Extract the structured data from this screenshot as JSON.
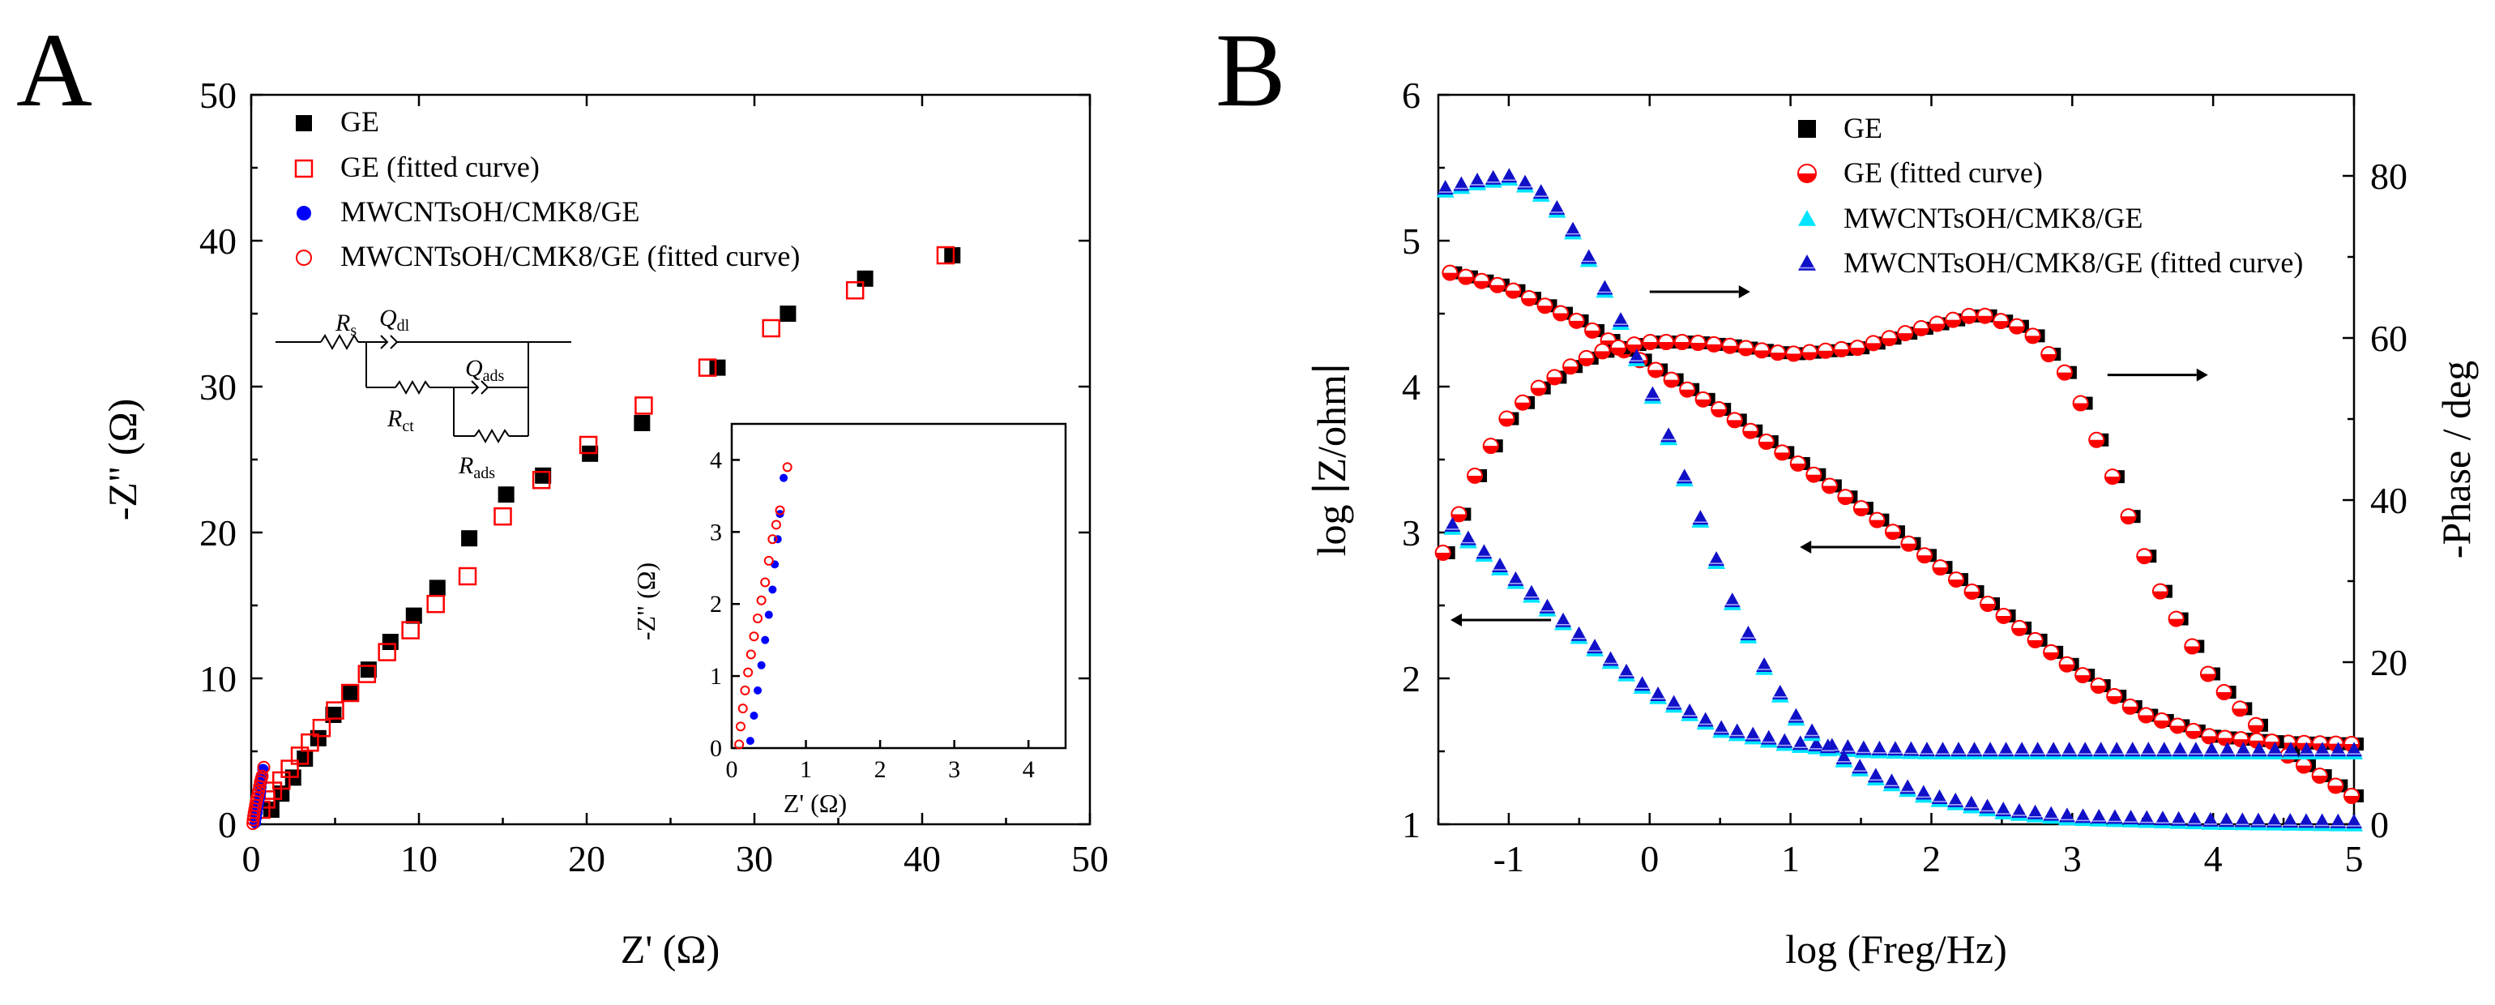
{
  "figure": {
    "panel_a_letter": "A",
    "panel_b_letter": "B"
  },
  "colors": {
    "black": "#000000",
    "red": "#ff0000",
    "blue": "#0000ff",
    "cyan": "#00e5ff",
    "navy": "#1010c8"
  },
  "chart_data": [
    {
      "id": "A",
      "type": "scatter",
      "title": "",
      "xlabel": "Z' (Ω)",
      "ylabel": "-Z\" (Ω)",
      "xlim": [
        0,
        50
      ],
      "ylim": [
        0,
        50
      ],
      "xticks": [
        "0",
        "10",
        "20",
        "30",
        "40",
        "50"
      ],
      "yticks": [
        "0",
        "10",
        "20",
        "30",
        "40",
        "50"
      ],
      "legend": [
        {
          "label": "GE",
          "marker": "square-filled",
          "color": "#000000"
        },
        {
          "label": "GE (fitted curve)",
          "marker": "square-open",
          "color": "#ff0000"
        },
        {
          "label": "MWCNTsOH/CMK8/GE",
          "marker": "circle-filled",
          "color": "#0000ff"
        },
        {
          "label": "MWCNTsOH/CMK8/GE (fitted curve)",
          "marker": "circle-open",
          "color": "#ff0000"
        }
      ],
      "series": [
        {
          "name": "GE",
          "x": [
            1.2,
            1.8,
            2.5,
            3.2,
            4.0,
            4.9,
            5.9,
            7.0,
            8.3,
            9.7,
            11.1,
            13.0,
            15.2,
            17.4,
            20.2,
            23.3,
            27.8,
            32.0,
            36.6,
            41.8
          ],
          "y": [
            1.0,
            2.1,
            3.2,
            4.5,
            5.9,
            7.5,
            9.0,
            10.6,
            12.5,
            14.3,
            16.2,
            19.6,
            22.6,
            23.9,
            25.4,
            27.5,
            31.3,
            35.0,
            37.4,
            39.0
          ]
        },
        {
          "name": "GE (fitted curve)",
          "x": [
            0.6,
            0.9,
            1.3,
            1.8,
            2.3,
            2.9,
            3.5,
            4.2,
            5.0,
            5.9,
            6.9,
            8.1,
            9.5,
            11.0,
            12.9,
            15.0,
            17.3,
            20.1,
            23.4,
            27.2,
            31.0,
            36.0,
            41.4
          ],
          "y": [
            1.0,
            1.7,
            2.3,
            3.0,
            3.8,
            4.7,
            5.6,
            6.6,
            7.8,
            9.0,
            10.3,
            11.8,
            13.3,
            15.1,
            17.0,
            21.1,
            23.6,
            26.0,
            28.7,
            31.3,
            34.0,
            36.6,
            39.0
          ]
        },
        {
          "name": "MWCNTsOH/CMK8/GE",
          "x": [
            0.25,
            0.3,
            0.35,
            0.4,
            0.45,
            0.5,
            0.55,
            0.58,
            0.62,
            0.65,
            0.7
          ],
          "y": [
            0.1,
            0.45,
            0.8,
            1.15,
            1.5,
            1.85,
            2.2,
            2.55,
            2.9,
            3.25,
            3.75
          ]
        },
        {
          "name": "MWCNTsOH/CMK8/GE (fitted curve)",
          "x": [
            0.1,
            0.12,
            0.15,
            0.18,
            0.22,
            0.26,
            0.3,
            0.35,
            0.4,
            0.45,
            0.5,
            0.55,
            0.6,
            0.65,
            0.75
          ],
          "y": [
            0.05,
            0.3,
            0.55,
            0.8,
            1.05,
            1.3,
            1.55,
            1.8,
            2.05,
            2.3,
            2.6,
            2.9,
            3.1,
            3.3,
            3.9
          ]
        }
      ],
      "inset": {
        "xlabel": "Z' (Ω)",
        "ylabel": "-Z\" (Ω)",
        "xlim": [
          0,
          4.5
        ],
        "ylim": [
          0,
          4.5
        ],
        "xticks": [
          "0",
          "1",
          "2",
          "3",
          "4"
        ],
        "yticks": [
          "0",
          "1",
          "2",
          "3",
          "4"
        ]
      },
      "circuit": {
        "labels": [
          "Rs",
          "Qdl",
          "Rct",
          "Qads",
          "Rads"
        ]
      }
    },
    {
      "id": "B",
      "type": "scatter",
      "title": "",
      "xlabel": "log (Freg/Hz)",
      "ylabel": "log ∣Z/ohm∣",
      "y2label": "-Phase / deg",
      "xlim": [
        -1.5,
        5
      ],
      "ylim": [
        1,
        6
      ],
      "y2lim": [
        0,
        90
      ],
      "xticks": [
        "-1",
        "0",
        "1",
        "2",
        "3",
        "4",
        "5"
      ],
      "yticks": [
        "1",
        "2",
        "3",
        "4",
        "5",
        "6"
      ],
      "y2ticks": [
        "0",
        "20",
        "40",
        "60",
        "80"
      ],
      "legend": [
        {
          "label": "GE",
          "marker": "square-filled",
          "color": "#000000"
        },
        {
          "label": "GE (fitted curve)",
          "marker": "circle-halfred",
          "color": "#ff0000"
        },
        {
          "label": "MWCNTsOH/CMK8/GE",
          "marker": "triangle-filled",
          "color": "#00e5ff"
        },
        {
          "label": "MWCNTsOH/CMK8/GE (fitted curve)",
          "marker": "triangle-navy",
          "color": "#1010c8"
        }
      ],
      "series": [
        {
          "name": "GE |Z|",
          "axis": "left",
          "x": [
            -1.4,
            -1.0,
            -0.5,
            0.0,
            0.5,
            1.0,
            1.5,
            2.0,
            2.5,
            3.0,
            3.5,
            4.0,
            4.5,
            5.0
          ],
          "y": [
            4.78,
            4.68,
            4.45,
            4.15,
            3.85,
            3.52,
            3.18,
            2.82,
            2.45,
            2.08,
            1.76,
            1.6,
            1.56,
            1.55
          ]
        },
        {
          "name": "GE phase",
          "axis": "right",
          "x": [
            -1.45,
            -1.2,
            -1.0,
            -0.8,
            -0.5,
            -0.3,
            0.0,
            0.3,
            0.6,
            1.0,
            1.5,
            2.0,
            2.35,
            2.7,
            3.0,
            3.3,
            3.6,
            4.0,
            4.5,
            5.0
          ],
          "y": [
            33.5,
            44,
            50,
            53.5,
            57,
            58.5,
            59.5,
            59.5,
            59,
            58,
            58.8,
            61.5,
            63,
            61,
            55,
            43,
            30,
            18,
            9,
            3.5
          ]
        },
        {
          "name": "MWCNTsOH/CMK8/GE |Z|",
          "axis": "left",
          "x": [
            -1.4,
            -1.0,
            -0.5,
            0.0,
            0.5,
            1.0,
            1.5,
            2.0,
            2.5,
            3.0,
            3.5,
            4.0,
            4.5,
            5.0
          ],
          "y": [
            3.05,
            2.72,
            2.3,
            1.92,
            1.66,
            1.56,
            1.52,
            1.51,
            1.51,
            1.51,
            1.51,
            1.51,
            1.51,
            1.51
          ]
        },
        {
          "name": "MWCNTsOH/CMK8/GE phase",
          "axis": "right",
          "x": [
            -1.45,
            -1.2,
            -1.0,
            -0.8,
            -0.6,
            -0.4,
            -0.2,
            0.0,
            0.2,
            0.4,
            0.6,
            0.8,
            1.0,
            1.3,
            1.6,
            2.0,
            2.5,
            3.0,
            4.0,
            5.0
          ],
          "y": [
            78.5,
            79.5,
            80,
            78.5,
            75,
            69,
            62,
            54,
            45,
            36,
            27,
            20,
            14,
            9,
            6,
            3.5,
            1.8,
            1.0,
            0.5,
            0.3
          ]
        }
      ],
      "arrows": [
        {
          "x": 0.0,
          "y": 4.65,
          "direction": "right"
        },
        {
          "x": 3.25,
          "y": 4.08,
          "direction": "right"
        },
        {
          "x": 1.78,
          "y": 2.9,
          "direction": "left"
        },
        {
          "x": -0.7,
          "y": 2.4,
          "direction": "left"
        }
      ]
    }
  ]
}
